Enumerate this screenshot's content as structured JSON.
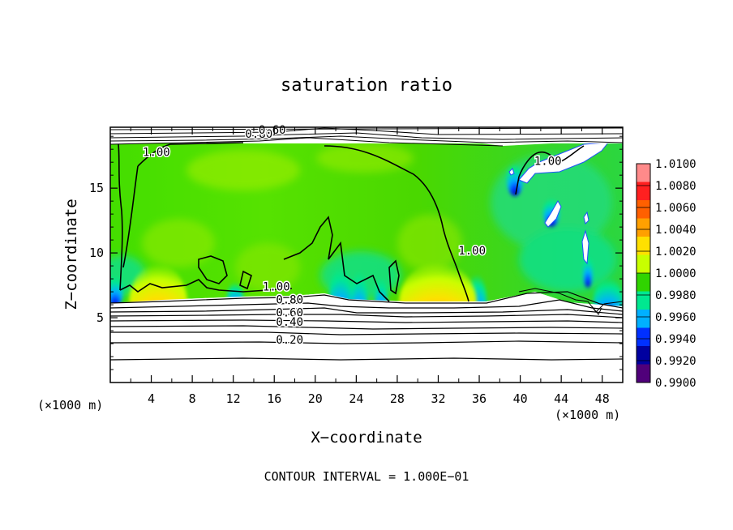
{
  "chart_data": {
    "type": "heatmap",
    "title": "saturation ratio",
    "xlabel": "X−coordinate",
    "ylabel": "Z−coordinate",
    "x_unit_left": "(×1000 m)",
    "x_unit_right": "(×1000 m)",
    "footer": "CONTOUR INTERVAL =  1.000E−01",
    "xlim": [
      0,
      50
    ],
    "ylim": [
      0,
      19.7
    ],
    "x_ticks": [
      4,
      8,
      12,
      16,
      20,
      24,
      28,
      32,
      36,
      40,
      44,
      48
    ],
    "y_ticks": [
      5,
      10,
      15
    ],
    "colorbar": {
      "min": 0.99,
      "max": 1.01,
      "labels": [
        "1.0100",
        "1.0080",
        "1.0060",
        "1.0040",
        "1.0020",
        "1.0000",
        "0.9980",
        "0.9960",
        "0.9940",
        "0.9920",
        "0.9900"
      ],
      "colors": [
        "#ff8a8a",
        "#ff2020",
        "#ff6000",
        "#ffa000",
        "#ffe000",
        "#c8ff00",
        "#30d400",
        "#00e890",
        "#00b0ff",
        "#0030ff",
        "#0000a0",
        "#50007a"
      ]
    },
    "contour_labels": [
      {
        "text": "0.80",
        "x": 14.5,
        "z": 19.2
      },
      {
        "text": "0.60",
        "x": 15.8,
        "z": 19.5
      },
      {
        "text": "1.00",
        "x": 4.5,
        "z": 17.8
      },
      {
        "text": "1.00",
        "x": 35.3,
        "z": 10.2
      },
      {
        "text": "1.00",
        "x": 42.7,
        "z": 17.1
      },
      {
        "text": "1.00",
        "x": 16.2,
        "z": 7.4
      },
      {
        "text": "0.80",
        "x": 17.5,
        "z": 6.4
      },
      {
        "text": "0.60",
        "x": 17.5,
        "z": 5.4
      },
      {
        "text": "0.40",
        "x": 17.5,
        "z": 4.7
      },
      {
        "text": "0.20",
        "x": 17.5,
        "z": 3.3
      }
    ]
  }
}
